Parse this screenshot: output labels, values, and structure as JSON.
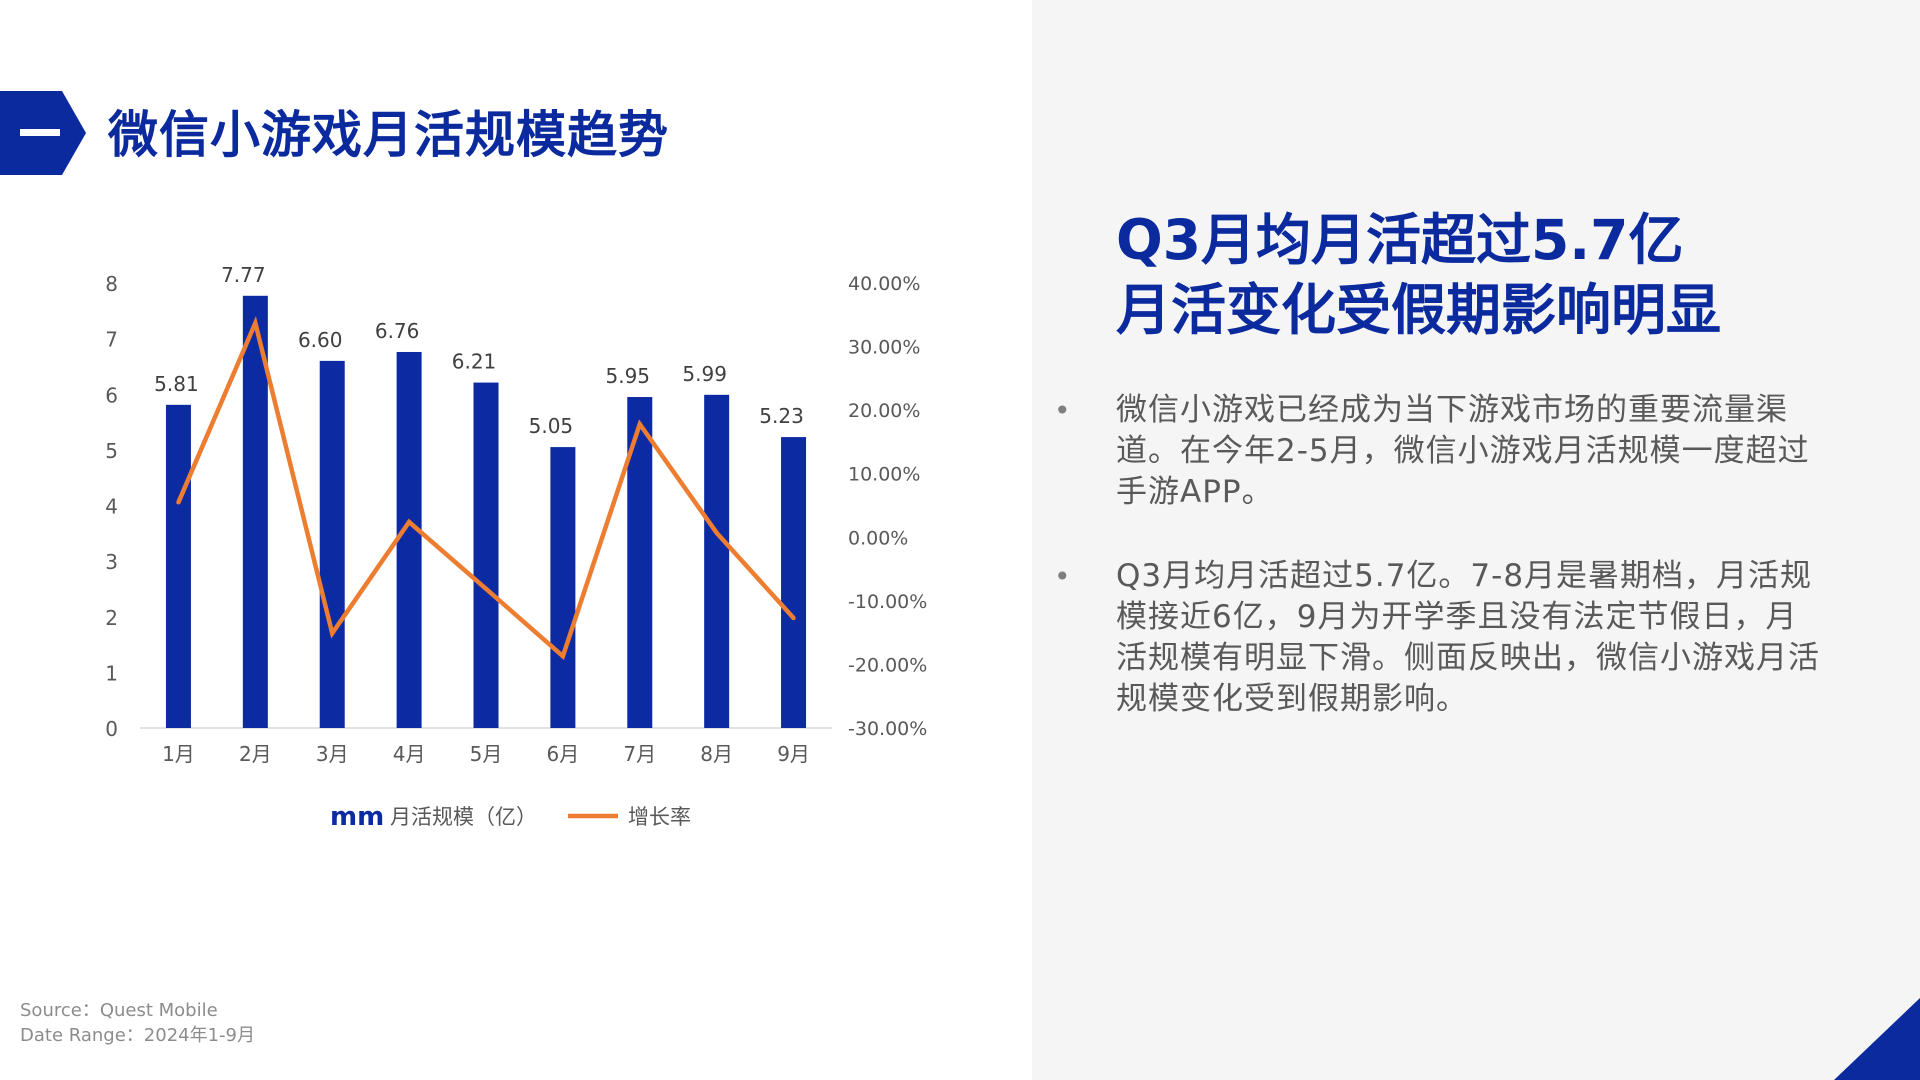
{
  "slide": {
    "title": "微信小游戏月活规模趋势",
    "headline": [
      "Q3月均月活超过5.7亿",
      "月活变化受假期影响明显"
    ],
    "bullets": [
      " 微信小游戏已经成为当下游戏市场的重要流量渠道。在今年2-5月，微信小游戏月活规模一度超过手游APP。",
      " Q3月均月活超过5.7亿。7-8月是暑期档，月活规模接近6亿，9月为开学季且没有法定节假日，月活规模有明显下滑。侧面反映出，微信小游戏月活规模变化受到假期影响。"
    ],
    "bullet_symbol": "•",
    "source": "Source：Quest Mobile",
    "date_range": "Date Range：2024年1-9月"
  },
  "colors": {
    "primary": "#0b2a9e",
    "bar": "#0c2aa2",
    "line": "#ed7d31",
    "right_panel_bg": "#f5f5f6",
    "axis_text": "#595959"
  },
  "chart_data": {
    "type": "bar",
    "categories": [
      "1月",
      "2月",
      "3月",
      "4月",
      "5月",
      "6月",
      "7月",
      "8月",
      "9月"
    ],
    "series": [
      {
        "name": "月活规模（亿）",
        "type": "bar",
        "axis": "left",
        "values": [
          5.81,
          7.77,
          6.6,
          6.76,
          6.21,
          5.05,
          5.95,
          5.99,
          5.23
        ],
        "labels": [
          "5.81",
          "7.77",
          "6.60",
          "6.76",
          "6.21",
          "5.05",
          "5.95",
          "5.99",
          "5.23"
        ]
      },
      {
        "name": "增长率",
        "type": "line",
        "axis": "right",
        "values": [
          5.5,
          33.7,
          -15.1,
          2.4,
          -8.1,
          -18.7,
          17.8,
          0.7,
          -12.7
        ]
      }
    ],
    "y_left": {
      "min": 0,
      "max": 8,
      "ticks": [
        "0",
        "1",
        "2",
        "3",
        "4",
        "5",
        "6",
        "7",
        "8"
      ]
    },
    "y_right": {
      "min": -30,
      "max": 40,
      "ticks": [
        "-30.00%",
        "-20.00%",
        "-10.00%",
        "0.00%",
        "10.00%",
        "20.00%",
        "30.00%",
        "40.00%"
      ]
    },
    "legend_position": "bottom",
    "legend_bar_marker": "mm",
    "grid": false
  }
}
